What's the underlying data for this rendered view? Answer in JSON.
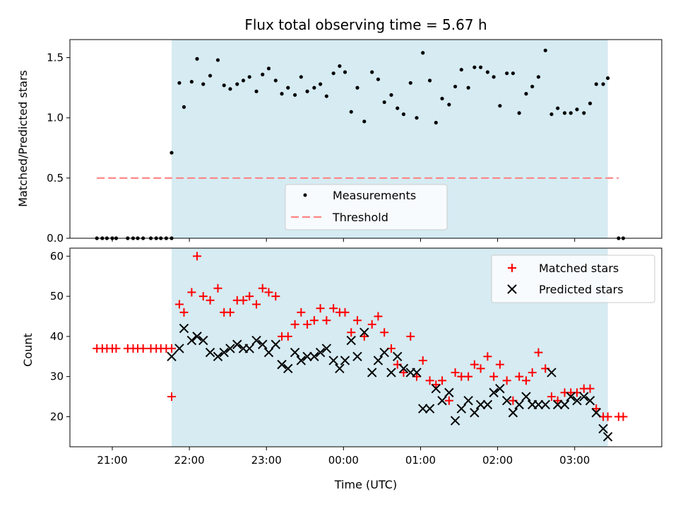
{
  "chart_data": [
    {
      "type": "scatter",
      "title": "Flux total observing time = 5.67 h",
      "ylabel": "Matched/Predicted stars",
      "xlabel": "",
      "x_unit": "hours since 20:00 UTC",
      "xlim": [
        20.45,
        28.13
      ],
      "ylim": [
        0,
        1.65
      ],
      "yticks": [
        "0.0",
        "0.5",
        "1.0",
        "1.5"
      ],
      "shaded_span": [
        21.77,
        27.43
      ],
      "shade_color": "#add8e6",
      "legend": {
        "placement": "lower center",
        "entries": [
          "Measurements",
          "Threshold"
        ]
      },
      "threshold": {
        "name": "Threshold",
        "value": 0.5,
        "x_range": [
          20.8,
          27.57
        ],
        "color": "#ff7f7f",
        "style": "dashed"
      },
      "series": [
        {
          "name": "Measurements",
          "color": "#000000",
          "x": [
            20.8,
            20.87,
            20.93,
            21.0,
            21.05,
            21.2,
            21.27,
            21.33,
            21.4,
            21.5,
            21.57,
            21.63,
            21.7,
            21.77,
            21.77,
            21.87,
            21.93,
            22.03,
            22.1,
            22.18,
            22.27,
            22.37,
            22.45,
            22.53,
            22.62,
            22.7,
            22.78,
            22.87,
            22.95,
            23.03,
            23.12,
            23.2,
            23.28,
            23.37,
            23.45,
            23.53,
            23.62,
            23.7,
            23.78,
            23.87,
            23.95,
            24.02,
            24.1,
            24.18,
            24.27,
            24.37,
            24.45,
            24.53,
            24.62,
            24.7,
            24.78,
            24.87,
            24.95,
            25.03,
            25.12,
            25.2,
            25.28,
            25.37,
            25.45,
            25.53,
            25.62,
            25.7,
            25.78,
            25.87,
            25.95,
            26.03,
            26.12,
            26.2,
            26.28,
            26.37,
            26.45,
            26.53,
            26.62,
            26.7,
            26.78,
            26.87,
            26.95,
            27.03,
            27.12,
            27.2,
            27.28,
            27.37,
            27.43,
            27.57,
            27.63
          ],
          "y": [
            0,
            0,
            0,
            0,
            0,
            0,
            0,
            0,
            0,
            0,
            0,
            0,
            0,
            0,
            0.71,
            1.29,
            1.09,
            1.3,
            1.49,
            1.28,
            1.35,
            1.48,
            1.27,
            1.24,
            1.28,
            1.31,
            1.34,
            1.22,
            1.36,
            1.41,
            1.31,
            1.2,
            1.25,
            1.19,
            1.34,
            1.22,
            1.25,
            1.28,
            1.18,
            1.37,
            1.43,
            1.38,
            1.05,
            1.25,
            0.97,
            1.38,
            1.32,
            1.13,
            1.19,
            1.08,
            1.03,
            1.29,
            1.0,
            1.54,
            1.31,
            0.96,
            1.16,
            1.11,
            1.26,
            1.4,
            1.25,
            1.42,
            1.42,
            1.38,
            1.34,
            1.1,
            1.37,
            1.37,
            1.04,
            1.2,
            1.26,
            1.34,
            1.56,
            1.03,
            1.08,
            1.04,
            1.04,
            1.07,
            1.04,
            1.12,
            1.28,
            1.28,
            1.33,
            0,
            0
          ]
        }
      ]
    },
    {
      "type": "scatter",
      "title": "",
      "xlabel": "Time (UTC)",
      "ylabel": "Count",
      "x_unit": "hours since 20:00 UTC",
      "xlim": [
        20.45,
        28.13
      ],
      "ylim": [
        12.5,
        62
      ],
      "yticks": [
        "20",
        "30",
        "40",
        "50",
        "60"
      ],
      "xticks": [
        "21:00",
        "22:00",
        "23:00",
        "00:00",
        "01:00",
        "02:00",
        "03:00"
      ],
      "shaded_span": [
        21.77,
        27.43
      ],
      "shade_color": "#add8e6",
      "legend": {
        "placement": "upper right",
        "entries": [
          "Matched stars",
          "Predicted stars"
        ]
      },
      "series": [
        {
          "name": "Matched stars",
          "marker": "plus",
          "color": "#ff0000",
          "x": [
            20.8,
            20.87,
            20.93,
            21.0,
            21.05,
            21.2,
            21.27,
            21.33,
            21.4,
            21.5,
            21.57,
            21.63,
            21.7,
            21.77,
            21.77,
            21.87,
            21.93,
            22.03,
            22.1,
            22.18,
            22.27,
            22.37,
            22.45,
            22.53,
            22.62,
            22.7,
            22.78,
            22.87,
            22.95,
            23.03,
            23.12,
            23.2,
            23.28,
            23.37,
            23.45,
            23.53,
            23.62,
            23.7,
            23.78,
            23.87,
            23.95,
            24.02,
            24.1,
            24.18,
            24.27,
            24.37,
            24.45,
            24.53,
            24.62,
            24.7,
            24.78,
            24.87,
            24.95,
            25.03,
            25.12,
            25.2,
            25.28,
            25.37,
            25.45,
            25.53,
            25.62,
            25.7,
            25.78,
            25.87,
            25.95,
            26.03,
            26.12,
            26.2,
            26.28,
            26.37,
            26.45,
            26.53,
            26.62,
            26.7,
            26.78,
            26.87,
            26.95,
            27.03,
            27.12,
            27.2,
            27.28,
            27.37,
            27.43,
            27.57,
            27.63
          ],
          "y": [
            37,
            37,
            37,
            37,
            37,
            37,
            37,
            37,
            37,
            37,
            37,
            37,
            37,
            37,
            25,
            48,
            46,
            51,
            60,
            50,
            49,
            52,
            46,
            46,
            49,
            49,
            50,
            48,
            52,
            51,
            50,
            40,
            40,
            43,
            46,
            43,
            44,
            47,
            44,
            47,
            46,
            46,
            41,
            44,
            40,
            43,
            45,
            41,
            37,
            33,
            31,
            40,
            30,
            34,
            29,
            28,
            29,
            24,
            31,
            30,
            30,
            33,
            32,
            35,
            30,
            33,
            29,
            24,
            30,
            29,
            31,
            36,
            32,
            25,
            24,
            26,
            26,
            26,
            27,
            27,
            22,
            20,
            20,
            20,
            20
          ]
        },
        {
          "name": "Predicted stars",
          "marker": "x",
          "color": "#000000",
          "x": [
            21.77,
            21.87,
            21.93,
            22.03,
            22.1,
            22.18,
            22.27,
            22.37,
            22.45,
            22.53,
            22.62,
            22.7,
            22.78,
            22.87,
            22.95,
            23.03,
            23.12,
            23.2,
            23.28,
            23.37,
            23.45,
            23.53,
            23.62,
            23.7,
            23.78,
            23.87,
            23.95,
            24.02,
            24.1,
            24.18,
            24.27,
            24.37,
            24.45,
            24.53,
            24.62,
            24.7,
            24.78,
            24.87,
            24.95,
            25.03,
            25.12,
            25.2,
            25.28,
            25.37,
            25.45,
            25.53,
            25.62,
            25.7,
            25.78,
            25.87,
            25.95,
            26.03,
            26.12,
            26.2,
            26.28,
            26.37,
            26.45,
            26.53,
            26.62,
            26.7,
            26.78,
            26.87,
            26.95,
            27.03,
            27.12,
            27.2,
            27.28,
            27.37,
            27.43
          ],
          "y": [
            35,
            37,
            42,
            39,
            40,
            39,
            36,
            35,
            36,
            37,
            38,
            37,
            37,
            39,
            38,
            36,
            38,
            33,
            32,
            36,
            34,
            35,
            35,
            36,
            37,
            34,
            32,
            34,
            39,
            35,
            41,
            31,
            34,
            36,
            31,
            35,
            32,
            31,
            31,
            22,
            22,
            27,
            24,
            26,
            19,
            22,
            24,
            21,
            23,
            23,
            26,
            27,
            24,
            21,
            23,
            25,
            23,
            23,
            23,
            31,
            23,
            23,
            25,
            24,
            25,
            24,
            21,
            17,
            15
          ]
        }
      ]
    }
  ]
}
